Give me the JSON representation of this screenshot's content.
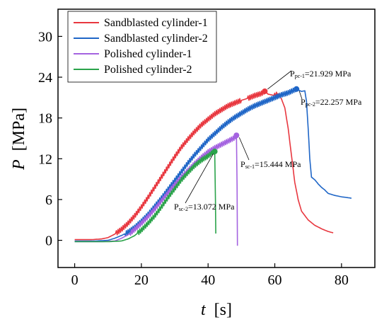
{
  "chart_data": {
    "type": "line",
    "xlabel": {
      "italic": "t",
      "unit": "[s]"
    },
    "ylabel": {
      "italic": "P",
      "unit": "[MPa]"
    },
    "xlim": [
      -5,
      90
    ],
    "ylim": [
      -4,
      34
    ],
    "xticks": [
      0,
      20,
      40,
      60,
      80
    ],
    "yticks": [
      0,
      6,
      12,
      18,
      24,
      30
    ],
    "grid": false,
    "legend_position": "top-left",
    "series": [
      {
        "name": "Sandblasted cylinder-1",
        "color": "#e8373f",
        "points": [
          [
            0,
            0.1
          ],
          [
            5,
            0.1
          ],
          [
            8,
            0.2
          ],
          [
            10,
            0.4
          ],
          [
            12,
            0.9
          ],
          [
            14,
            1.6
          ],
          [
            16,
            2.5
          ],
          [
            18,
            3.6
          ],
          [
            20,
            4.9
          ],
          [
            22,
            6.3
          ],
          [
            24,
            7.8
          ],
          [
            26,
            9.3
          ],
          [
            28,
            10.8
          ],
          [
            30,
            12.3
          ],
          [
            32,
            13.7
          ],
          [
            34,
            14.9
          ],
          [
            36,
            16.0
          ],
          [
            38,
            17.0
          ],
          [
            40,
            17.8
          ],
          [
            42,
            18.6
          ],
          [
            44,
            19.2
          ],
          [
            46,
            19.8
          ],
          [
            48,
            20.2
          ],
          [
            50,
            20.6
          ],
          [
            52,
            20.9
          ],
          [
            54,
            21.3
          ],
          [
            56,
            21.6
          ],
          [
            57,
            21.93
          ],
          [
            58,
            21.5
          ],
          [
            60,
            21.3
          ],
          [
            61,
            21.6
          ],
          [
            62,
            20.8
          ],
          [
            63,
            19.5
          ],
          [
            64,
            16.5
          ],
          [
            65,
            12.5
          ],
          [
            66,
            8.5
          ],
          [
            67,
            6.0
          ],
          [
            68,
            4.3
          ],
          [
            70,
            3.0
          ],
          [
            72,
            2.2
          ],
          [
            74,
            1.7
          ],
          [
            76,
            1.3
          ],
          [
            77.5,
            1.1
          ]
        ]
      },
      {
        "name": "Sandblasted cylinder-2",
        "color": "#1f66c7",
        "points": [
          [
            0,
            -0.1
          ],
          [
            6,
            -0.1
          ],
          [
            10,
            0.0
          ],
          [
            12,
            0.3
          ],
          [
            14,
            0.7
          ],
          [
            16,
            1.2
          ],
          [
            18,
            1.9
          ],
          [
            20,
            2.8
          ],
          [
            22,
            3.8
          ],
          [
            24,
            5.0
          ],
          [
            26,
            6.2
          ],
          [
            28,
            7.5
          ],
          [
            30,
            8.8
          ],
          [
            32,
            10.1
          ],
          [
            34,
            11.4
          ],
          [
            36,
            12.6
          ],
          [
            38,
            13.7
          ],
          [
            40,
            14.8
          ],
          [
            42,
            15.7
          ],
          [
            44,
            16.6
          ],
          [
            46,
            17.4
          ],
          [
            48,
            18.1
          ],
          [
            50,
            18.7
          ],
          [
            52,
            19.3
          ],
          [
            54,
            19.8
          ],
          [
            56,
            20.2
          ],
          [
            58,
            20.6
          ],
          [
            60,
            21.0
          ],
          [
            62,
            21.4
          ],
          [
            64,
            21.7
          ],
          [
            66.5,
            22.26
          ],
          [
            68,
            21.9
          ],
          [
            69,
            22.0
          ],
          [
            69.5,
            20.5
          ],
          [
            70,
            16.5
          ],
          [
            70.5,
            12.0
          ],
          [
            71,
            9.3
          ],
          [
            72,
            8.9
          ],
          [
            73,
            8.3
          ],
          [
            74,
            7.8
          ],
          [
            75,
            7.4
          ],
          [
            76,
            6.9
          ],
          [
            78,
            6.6
          ],
          [
            80,
            6.4
          ],
          [
            83,
            6.2
          ]
        ]
      },
      {
        "name": "Polished cylinder-1",
        "color": "#a463e0",
        "points": [
          [
            0,
            -0.2
          ],
          [
            8,
            -0.2
          ],
          [
            12,
            -0.1
          ],
          [
            14,
            0.3
          ],
          [
            16,
            0.8
          ],
          [
            18,
            1.6
          ],
          [
            20,
            2.5
          ],
          [
            22,
            3.5
          ],
          [
            24,
            4.6
          ],
          [
            26,
            5.8
          ],
          [
            28,
            7.0
          ],
          [
            30,
            8.2
          ],
          [
            32,
            9.3
          ],
          [
            34,
            10.3
          ],
          [
            36,
            11.3
          ],
          [
            38,
            12.2
          ],
          [
            40,
            13.0
          ],
          [
            42,
            13.6
          ],
          [
            44,
            14.1
          ],
          [
            46,
            14.6
          ],
          [
            48,
            15.1
          ],
          [
            48.5,
            15.44
          ],
          [
            48.7,
            8.0
          ],
          [
            48.8,
            -0.8
          ]
        ]
      },
      {
        "name": "Polished cylinder-2",
        "color": "#2aa34a",
        "points": [
          [
            0,
            -0.2
          ],
          [
            10,
            -0.2
          ],
          [
            14,
            -0.1
          ],
          [
            16,
            0.2
          ],
          [
            18,
            0.7
          ],
          [
            20,
            1.5
          ],
          [
            22,
            2.5
          ],
          [
            24,
            3.6
          ],
          [
            26,
            4.9
          ],
          [
            28,
            6.3
          ],
          [
            30,
            7.6
          ],
          [
            32,
            8.9
          ],
          [
            34,
            10.0
          ],
          [
            36,
            11.0
          ],
          [
            38,
            11.8
          ],
          [
            40,
            12.4
          ],
          [
            41,
            12.8
          ],
          [
            42,
            13.07
          ],
          [
            42.2,
            6.0
          ],
          [
            42.3,
            1.0
          ]
        ]
      }
    ],
    "annotations": [
      {
        "main": "P",
        "sub": "pc-1",
        "value": "=21.929 MPa",
        "series": 0,
        "x": 57,
        "y": 21.929
      },
      {
        "main": "P",
        "sub": "pc-2",
        "value": "=22.257 MPa",
        "series": 1,
        "x": 66.5,
        "y": 22.257
      },
      {
        "main": "P",
        "sub": "sc-1",
        "value": "=15.444 MPa",
        "series": 2,
        "x": 48.5,
        "y": 15.444
      },
      {
        "main": "P",
        "sub": "sc-2",
        "value": "=13.072 MPa",
        "series": 3,
        "x": 42,
        "y": 13.072
      }
    ]
  }
}
